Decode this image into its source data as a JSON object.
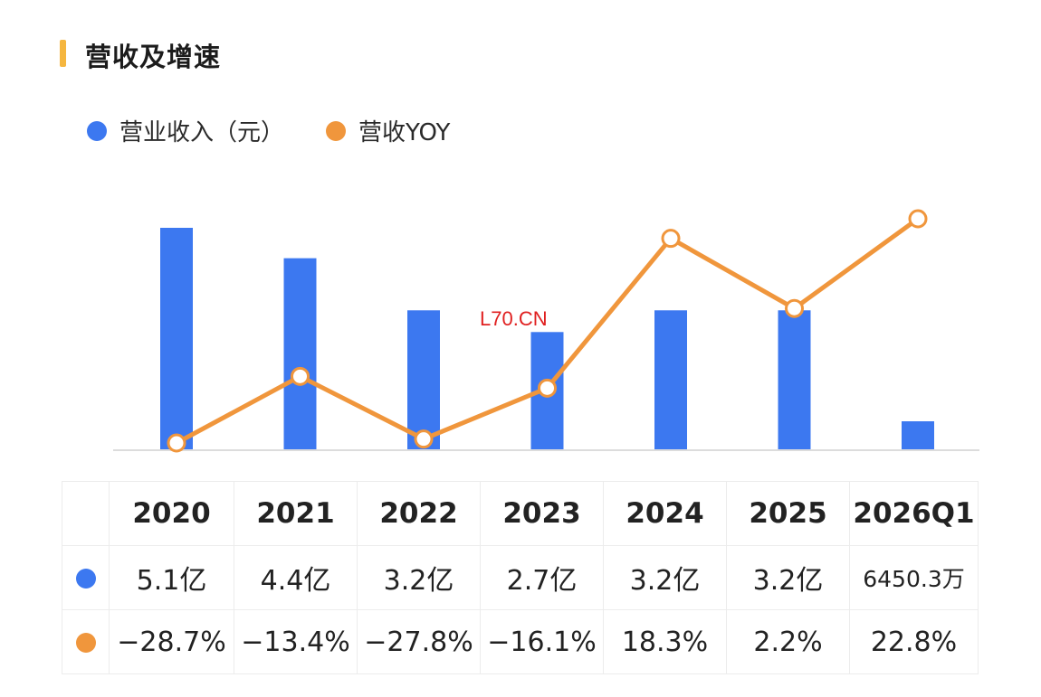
{
  "header": {
    "title": "营收及增速"
  },
  "legend": {
    "revenue_label": "营业收入（元）",
    "yoy_label": "营收YOY"
  },
  "colors": {
    "revenue": "#3c78f0",
    "yoy": "#f0963c",
    "accent": "#f5b63f"
  },
  "overlay_text": "L70.CN",
  "chart_data": {
    "type": "bar",
    "categories": [
      "2020",
      "2021",
      "2022",
      "2023",
      "2024",
      "2025",
      "2026Q1"
    ],
    "series": [
      {
        "name": "营业收入（元）",
        "type": "bar",
        "values": [
          5.1,
          4.4,
          3.2,
          2.7,
          3.2,
          3.2,
          0.645
        ],
        "unit": "亿"
      },
      {
        "name": "营收YOY",
        "type": "line",
        "values": [
          -28.7,
          -13.4,
          -27.8,
          -16.1,
          18.3,
          2.2,
          22.8
        ],
        "unit": "%"
      }
    ],
    "grid": false,
    "legend_position": "top-left"
  },
  "table": {
    "years": [
      "2020",
      "2021",
      "2022",
      "2023",
      "2024",
      "2025",
      "2026Q1"
    ],
    "revenue": [
      "5.1亿",
      "4.4亿",
      "3.2亿",
      "2.7亿",
      "3.2亿",
      "3.2亿",
      "6450.3万"
    ],
    "yoy": [
      "−28.7%",
      "−13.4%",
      "−27.8%",
      "−16.1%",
      "18.3%",
      "2.2%",
      "22.8%"
    ]
  }
}
